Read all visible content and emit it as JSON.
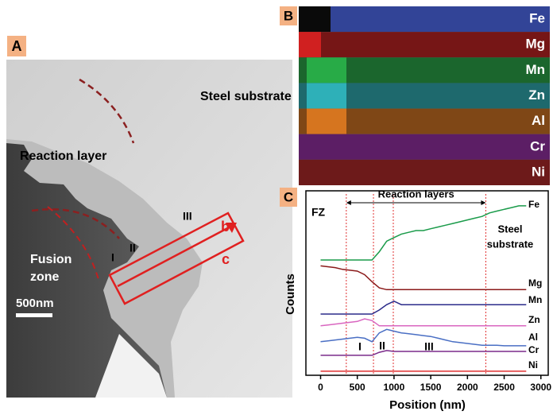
{
  "panel_a": {
    "label": "A",
    "steel": "Steel substrate",
    "reaction": "Reaction layer",
    "fusion": [
      "Fusion",
      "zone"
    ],
    "regions": [
      "I",
      "II",
      "III"
    ],
    "arrows": [
      "b",
      "c"
    ],
    "scale_bar": "500nm"
  },
  "panel_b": {
    "label": "B",
    "elements": [
      {
        "name": "Fe",
        "color": "#3a4fb0"
      },
      {
        "name": "Mg",
        "color": "#d02020"
      },
      {
        "name": "Mn",
        "color": "#2ab24a"
      },
      {
        "name": "Zn",
        "color": "#30b8c0"
      },
      {
        "name": "Al",
        "color": "#e07a20"
      },
      {
        "name": "Cr",
        "color": "#a030b0"
      },
      {
        "name": "Ni",
        "color": "#c02828"
      }
    ]
  },
  "chart_data": {
    "type": "line",
    "panel_label": "C",
    "ylabel": "Counts",
    "xlabel": "Position (nm)",
    "x": [
      0,
      100,
      200,
      300,
      400,
      500,
      600,
      700,
      800,
      900,
      1000,
      1100,
      1200,
      1300,
      1400,
      1500,
      1600,
      1700,
      1800,
      1900,
      2000,
      2100,
      2200,
      2300,
      2400,
      2500,
      2600,
      2700,
      2800
    ],
    "xlim": [
      -200,
      3100
    ],
    "xticks": [
      0,
      500,
      1000,
      1500,
      2000,
      2500,
      3000
    ],
    "ylim": [
      0,
      100
    ],
    "vlines": [
      350,
      720,
      990,
      2250
    ],
    "annotations": {
      "fz": "FZ",
      "reaction": "Reaction layers",
      "steel": [
        "Steel",
        "substrate"
      ],
      "regions": [
        "I",
        "II",
        "III"
      ]
    },
    "series": [
      {
        "name": "Fe",
        "color": "#1a9b4a",
        "values": [
          65.3,
          65.3,
          65.3,
          65.3,
          65.3,
          65.3,
          65.3,
          65.3,
          70,
          76,
          78,
          80,
          81,
          82,
          82,
          83,
          84,
          85,
          86,
          87,
          88,
          89,
          90,
          92,
          93,
          94,
          95,
          96,
          96
        ]
      },
      {
        "name": "Mg",
        "color": "#8b1a1a",
        "values": [
          62,
          61.5,
          61,
          60,
          59.5,
          59,
          57,
          53,
          49.5,
          48.5,
          48.5,
          48.5,
          48.5,
          48.5,
          48.5,
          48.5,
          48.5,
          48.5,
          48.5,
          48.5,
          48.5,
          48.5,
          48.5,
          48.5,
          48.5,
          48.5,
          48.5,
          48.5,
          48.5
        ]
      },
      {
        "name": "Mn",
        "color": "#2b2b8a",
        "values": [
          34.7,
          34.7,
          34.7,
          34.7,
          34.7,
          34.7,
          34.7,
          34.7,
          37,
          40,
          42,
          40,
          40,
          40,
          40,
          40,
          40,
          40,
          40,
          40,
          40,
          40,
          40,
          40,
          40,
          40,
          40,
          40,
          40
        ]
      },
      {
        "name": "Zn",
        "color": "#d966c0",
        "values": [
          28,
          28.5,
          29,
          29.5,
          30,
          30.5,
          32,
          31,
          28,
          28,
          28,
          28,
          28,
          28,
          28,
          28,
          28,
          28,
          28,
          28,
          28,
          28,
          28,
          28,
          28,
          28,
          28,
          28,
          28
        ]
      },
      {
        "name": "Al",
        "color": "#4a6fc4",
        "values": [
          19,
          19.5,
          20,
          20.5,
          21,
          21.5,
          21,
          19,
          24,
          26,
          25,
          24,
          23.5,
          23,
          22.5,
          22,
          21,
          20,
          19,
          18.5,
          18,
          17.5,
          17,
          17,
          17,
          16.7,
          16.7,
          16.7,
          16.7
        ]
      },
      {
        "name": "Cr",
        "color": "#7a2a8a",
        "values": [
          11.3,
          11.3,
          11.3,
          11.3,
          11.3,
          11.3,
          11.3,
          11.3,
          13,
          14,
          13.5,
          13.5,
          13.5,
          13.5,
          13.5,
          13.5,
          13.5,
          13.5,
          13.5,
          13.5,
          13.5,
          13.5,
          13.5,
          13.5,
          13.5,
          13.5,
          13.5,
          13.5,
          13.5
        ]
      },
      {
        "name": "Ni",
        "color": "#e03030",
        "values": [
          2.3,
          2.3,
          2.3,
          2.3,
          2.3,
          2.3,
          2.3,
          2.3,
          2.3,
          2.3,
          2.3,
          2.3,
          2.3,
          2.3,
          2.3,
          2.3,
          2.3,
          2.3,
          2.3,
          2.3,
          2.3,
          2.3,
          2.3,
          2.3,
          2.3,
          2.3,
          2.3,
          2.3,
          2.3
        ]
      }
    ]
  }
}
